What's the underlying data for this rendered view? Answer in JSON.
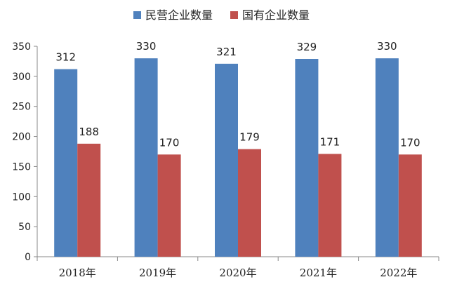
{
  "chart_data": {
    "type": "bar",
    "categories": [
      "2018年",
      "2019年",
      "2020年",
      "2021年",
      "2022年"
    ],
    "series": [
      {
        "name": "民营企业数量",
        "values": [
          312,
          330,
          321,
          329,
          330
        ],
        "color": "#4F81BD"
      },
      {
        "name": "国有企业数量",
        "values": [
          188,
          170,
          179,
          171,
          170
        ],
        "color": "#C0504D"
      }
    ],
    "title": "",
    "xlabel": "",
    "ylabel": "",
    "ylim": [
      0,
      350
    ],
    "yticks": [
      0,
      50,
      100,
      150,
      200,
      250,
      300,
      350
    ],
    "grid": false,
    "legend": "top-center",
    "data_labels": true
  }
}
